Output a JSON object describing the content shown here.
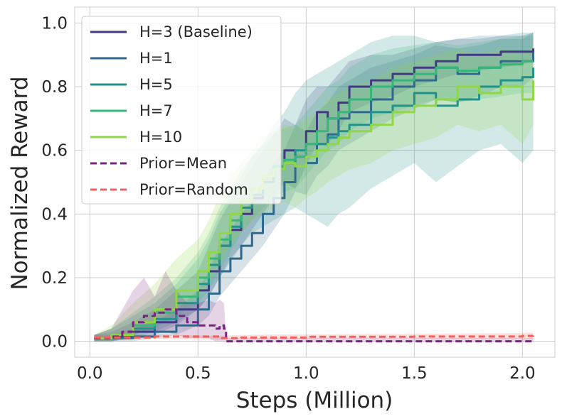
{
  "chart_data": {
    "type": "line",
    "xlabel": "Steps (Million)",
    "ylabel": "Normalized Reward",
    "xlim": [
      -0.07,
      2.15
    ],
    "ylim": [
      -0.05,
      1.05
    ],
    "xticks": [
      0.0,
      0.5,
      1.0,
      1.5,
      2.0
    ],
    "xtick_labels": [
      "0.0",
      "0.5",
      "1.0",
      "1.5",
      "2.0"
    ],
    "yticks": [
      0.0,
      0.2,
      0.4,
      0.6,
      0.8,
      1.0
    ],
    "ytick_labels": [
      "0.0",
      "0.2",
      "0.4",
      "0.6",
      "0.8",
      "1.0"
    ],
    "grid": true,
    "legend_position": "top-left",
    "series": [
      {
        "name": "H=3 (Baseline)",
        "color": "#433983",
        "dash": false,
        "x": [
          0.02,
          0.1,
          0.2,
          0.3,
          0.4,
          0.5,
          0.55,
          0.6,
          0.65,
          0.7,
          0.75,
          0.8,
          0.85,
          0.9,
          0.95,
          1.0,
          1.05,
          1.1,
          1.15,
          1.2,
          1.3,
          1.4,
          1.5,
          1.6,
          1.7,
          1.8,
          1.9,
          2.0,
          2.05
        ],
        "y": [
          0.01,
          0.015,
          0.03,
          0.06,
          0.1,
          0.16,
          0.22,
          0.3,
          0.35,
          0.4,
          0.45,
          0.5,
          0.55,
          0.6,
          0.58,
          0.66,
          0.72,
          0.7,
          0.75,
          0.8,
          0.82,
          0.84,
          0.86,
          0.88,
          0.9,
          0.9,
          0.91,
          0.91,
          0.92
        ],
        "lower": [
          0.0,
          0.0,
          0.01,
          0.02,
          0.05,
          0.1,
          0.14,
          0.2,
          0.26,
          0.3,
          0.35,
          0.4,
          0.45,
          0.5,
          0.48,
          0.55,
          0.62,
          0.62,
          0.66,
          0.72,
          0.75,
          0.77,
          0.8,
          0.82,
          0.84,
          0.85,
          0.86,
          0.87,
          0.88
        ],
        "upper": [
          0.02,
          0.03,
          0.06,
          0.1,
          0.16,
          0.22,
          0.3,
          0.38,
          0.44,
          0.5,
          0.55,
          0.6,
          0.65,
          0.7,
          0.68,
          0.76,
          0.8,
          0.8,
          0.84,
          0.88,
          0.9,
          0.9,
          0.92,
          0.94,
          0.95,
          0.95,
          0.96,
          0.96,
          0.97
        ]
      },
      {
        "name": "H=1",
        "color": "#31688E",
        "dash": false,
        "x": [
          0.02,
          0.1,
          0.2,
          0.3,
          0.4,
          0.5,
          0.55,
          0.6,
          0.65,
          0.7,
          0.75,
          0.8,
          0.85,
          0.9,
          0.95,
          1.0,
          1.05,
          1.1,
          1.15,
          1.2,
          1.3,
          1.4,
          1.5,
          1.6,
          1.7,
          1.8,
          1.9,
          2.0,
          2.05
        ],
        "y": [
          0.01,
          0.01,
          0.015,
          0.03,
          0.05,
          0.1,
          0.15,
          0.22,
          0.26,
          0.3,
          0.34,
          0.4,
          0.45,
          0.5,
          0.58,
          0.56,
          0.62,
          0.65,
          0.7,
          0.72,
          0.76,
          0.8,
          0.82,
          0.86,
          0.84,
          0.86,
          0.88,
          0.88,
          0.91
        ],
        "lower": [
          0.0,
          0.0,
          0.0,
          0.01,
          0.02,
          0.05,
          0.08,
          0.14,
          0.18,
          0.22,
          0.26,
          0.3,
          0.35,
          0.4,
          0.47,
          0.46,
          0.52,
          0.55,
          0.6,
          0.62,
          0.66,
          0.7,
          0.73,
          0.76,
          0.75,
          0.77,
          0.8,
          0.8,
          0.83
        ],
        "upper": [
          0.02,
          0.02,
          0.04,
          0.06,
          0.1,
          0.16,
          0.22,
          0.3,
          0.35,
          0.4,
          0.44,
          0.5,
          0.56,
          0.6,
          0.68,
          0.66,
          0.72,
          0.75,
          0.8,
          0.82,
          0.86,
          0.88,
          0.9,
          0.93,
          0.92,
          0.93,
          0.95,
          0.95,
          0.97
        ]
      },
      {
        "name": "H=5",
        "color": "#21918C",
        "dash": false,
        "x": [
          0.02,
          0.1,
          0.2,
          0.3,
          0.4,
          0.5,
          0.55,
          0.6,
          0.65,
          0.7,
          0.75,
          0.8,
          0.85,
          0.9,
          0.95,
          1.0,
          1.05,
          1.1,
          1.15,
          1.2,
          1.3,
          1.4,
          1.5,
          1.6,
          1.7,
          1.8,
          1.9,
          2.0,
          2.05
        ],
        "y": [
          0.01,
          0.02,
          0.04,
          0.07,
          0.12,
          0.18,
          0.24,
          0.3,
          0.36,
          0.42,
          0.46,
          0.5,
          0.54,
          0.56,
          0.6,
          0.62,
          0.62,
          0.64,
          0.66,
          0.68,
          0.72,
          0.74,
          0.78,
          0.74,
          0.76,
          0.8,
          0.82,
          0.83,
          0.86
        ],
        "lower": [
          0.0,
          0.0,
          0.01,
          0.03,
          0.06,
          0.1,
          0.14,
          0.2,
          0.25,
          0.3,
          0.34,
          0.36,
          0.38,
          0.4,
          0.42,
          0.4,
          0.38,
          0.36,
          0.4,
          0.42,
          0.48,
          0.52,
          0.56,
          0.5,
          0.55,
          0.6,
          0.62,
          0.56,
          0.6
        ],
        "upper": [
          0.02,
          0.04,
          0.08,
          0.12,
          0.18,
          0.26,
          0.32,
          0.4,
          0.46,
          0.52,
          0.58,
          0.62,
          0.68,
          0.72,
          0.78,
          0.82,
          0.84,
          0.86,
          0.88,
          0.9,
          0.94,
          0.96,
          0.96,
          0.94,
          0.95,
          0.96,
          0.96,
          0.97,
          0.97
        ]
      },
      {
        "name": "H=7",
        "color": "#35B779",
        "dash": false,
        "x": [
          0.02,
          0.1,
          0.2,
          0.3,
          0.4,
          0.5,
          0.55,
          0.6,
          0.65,
          0.7,
          0.75,
          0.8,
          0.85,
          0.9,
          0.95,
          1.0,
          1.05,
          1.1,
          1.15,
          1.2,
          1.3,
          1.4,
          1.5,
          1.6,
          1.7,
          1.8,
          1.9,
          2.0,
          2.05
        ],
        "y": [
          0.01,
          0.02,
          0.05,
          0.09,
          0.14,
          0.2,
          0.26,
          0.32,
          0.38,
          0.44,
          0.48,
          0.52,
          0.55,
          0.57,
          0.58,
          0.62,
          0.66,
          0.7,
          0.72,
          0.76,
          0.8,
          0.82,
          0.84,
          0.86,
          0.85,
          0.86,
          0.87,
          0.88,
          0.88
        ],
        "lower": [
          0.0,
          0.0,
          0.02,
          0.04,
          0.08,
          0.12,
          0.16,
          0.22,
          0.28,
          0.34,
          0.38,
          0.42,
          0.45,
          0.47,
          0.48,
          0.52,
          0.56,
          0.6,
          0.62,
          0.66,
          0.7,
          0.72,
          0.74,
          0.76,
          0.75,
          0.76,
          0.77,
          0.78,
          0.78
        ],
        "upper": [
          0.02,
          0.04,
          0.09,
          0.14,
          0.2,
          0.28,
          0.34,
          0.42,
          0.48,
          0.54,
          0.58,
          0.62,
          0.65,
          0.67,
          0.68,
          0.72,
          0.76,
          0.8,
          0.82,
          0.86,
          0.9,
          0.92,
          0.93,
          0.94,
          0.93,
          0.94,
          0.95,
          0.96,
          0.96
        ]
      },
      {
        "name": "H=10",
        "color": "#90D743",
        "dash": false,
        "x": [
          0.02,
          0.1,
          0.2,
          0.3,
          0.4,
          0.5,
          0.55,
          0.6,
          0.65,
          0.7,
          0.75,
          0.8,
          0.85,
          0.9,
          0.95,
          1.0,
          1.05,
          1.1,
          1.15,
          1.2,
          1.3,
          1.4,
          1.5,
          1.6,
          1.7,
          1.8,
          1.9,
          2.0,
          2.05
        ],
        "y": [
          0.01,
          0.02,
          0.06,
          0.1,
          0.16,
          0.22,
          0.28,
          0.34,
          0.4,
          0.44,
          0.48,
          0.52,
          0.54,
          0.56,
          0.55,
          0.58,
          0.6,
          0.62,
          0.64,
          0.66,
          0.68,
          0.72,
          0.74,
          0.76,
          0.8,
          0.78,
          0.8,
          0.76,
          0.82
        ],
        "lower": [
          0.0,
          0.0,
          0.02,
          0.05,
          0.09,
          0.14,
          0.18,
          0.24,
          0.3,
          0.34,
          0.38,
          0.4,
          0.42,
          0.44,
          0.42,
          0.45,
          0.47,
          0.5,
          0.52,
          0.54,
          0.56,
          0.6,
          0.62,
          0.64,
          0.68,
          0.66,
          0.68,
          0.62,
          0.68
        ],
        "upper": [
          0.02,
          0.05,
          0.12,
          0.18,
          0.26,
          0.32,
          0.38,
          0.46,
          0.52,
          0.56,
          0.6,
          0.64,
          0.66,
          0.68,
          0.67,
          0.7,
          0.72,
          0.76,
          0.78,
          0.8,
          0.82,
          0.86,
          0.88,
          0.9,
          0.92,
          0.9,
          0.92,
          0.9,
          0.93
        ]
      },
      {
        "name": "Prior=Mean",
        "color": "#7B2382",
        "dash": true,
        "x": [
          0.02,
          0.1,
          0.15,
          0.2,
          0.25,
          0.3,
          0.35,
          0.4,
          0.45,
          0.5,
          0.55,
          0.58,
          0.6,
          0.62,
          0.63,
          0.7,
          0.8,
          1.0,
          1.2,
          1.4,
          1.6,
          1.8,
          2.0,
          2.05
        ],
        "y": [
          0.01,
          0.015,
          0.03,
          0.06,
          0.08,
          0.09,
          0.1,
          0.08,
          0.06,
          0.05,
          0.05,
          0.04,
          0.05,
          0.04,
          0.0,
          0.0,
          0.0,
          0.0,
          0.0,
          0.0,
          0.0,
          0.0,
          0.0,
          0.0
        ],
        "lower": [
          0.0,
          0.0,
          0.01,
          0.02,
          0.03,
          0.03,
          0.03,
          0.02,
          0.01,
          0.01,
          0.01,
          0.0,
          0.0,
          0.0,
          0.0,
          0.0,
          0.0,
          0.0,
          0.0,
          0.0,
          0.0,
          0.0,
          0.0,
          0.0
        ],
        "upper": [
          0.02,
          0.04,
          0.1,
          0.16,
          0.2,
          0.14,
          0.22,
          0.16,
          0.12,
          0.12,
          0.13,
          0.12,
          0.13,
          0.12,
          0.01,
          0.01,
          0.01,
          0.01,
          0.01,
          0.01,
          0.01,
          0.01,
          0.01,
          0.01
        ]
      },
      {
        "name": "Prior=Random",
        "color": "#F1605D",
        "dash": true,
        "x": [
          0.02,
          0.3,
          0.6,
          0.7,
          1.0,
          1.5,
          2.0,
          2.05
        ],
        "y": [
          0.012,
          0.015,
          0.01,
          0.012,
          0.014,
          0.015,
          0.017,
          0.018
        ],
        "lower": [
          0.005,
          0.008,
          0.005,
          0.006,
          0.007,
          0.008,
          0.008,
          0.008
        ],
        "upper": [
          0.02,
          0.022,
          0.017,
          0.02,
          0.022,
          0.023,
          0.026,
          0.027
        ]
      }
    ]
  }
}
